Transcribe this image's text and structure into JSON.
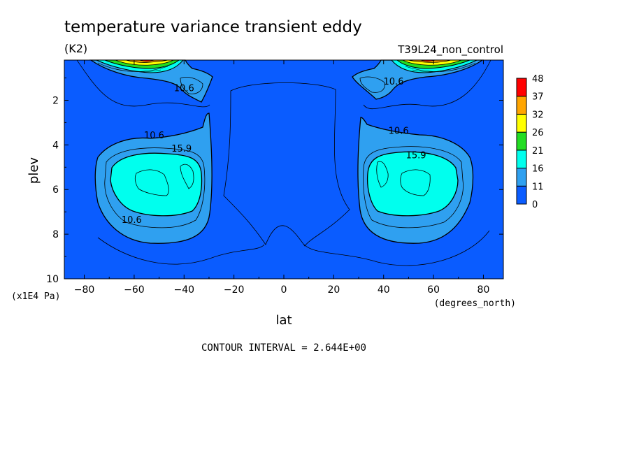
{
  "chart_data": {
    "type": "heatmap",
    "title": "temperature variance transient eddy",
    "units": "(K2)",
    "run_label": "T39L24_non_control",
    "xlabel": "lat",
    "x_units": "(degrees_north)",
    "ylabel": "plev",
    "y_units": "(x1E4 Pa)",
    "xlim": [
      -88,
      88
    ],
    "ylim": [
      10,
      0.2
    ],
    "y_inverted": true,
    "x_ticks": [
      -80,
      -60,
      -40,
      -20,
      0,
      20,
      40,
      60,
      80
    ],
    "y_ticks": [
      2,
      4,
      6,
      8,
      10
    ],
    "x_tick_labels": [
      "−80",
      "−60",
      "−40",
      "−20",
      "0",
      "20",
      "40",
      "60",
      "80"
    ],
    "y_tick_labels": [
      "2",
      "4",
      "6",
      "8",
      "10"
    ],
    "colorbar": {
      "levels": [
        0,
        11,
        16,
        21,
        26,
        32,
        37,
        48
      ],
      "level_labels": [
        "0",
        "11",
        "16",
        "21",
        "26",
        "32",
        "37",
        "48"
      ],
      "colors": [
        "#0a5cff",
        "#2fa0f0",
        "#00ffee",
        "#22dd22",
        "#ffff00",
        "#ffa500",
        "#ff0000"
      ]
    },
    "contour_labels": [
      {
        "text": "10.6",
        "lat": -40,
        "plev": 1.6
      },
      {
        "text": "10.6",
        "lat": 44,
        "plev": 1.3
      },
      {
        "text": "10.6",
        "lat": -52,
        "plev": 3.7
      },
      {
        "text": "15.9",
        "lat": -41,
        "plev": 4.3
      },
      {
        "text": "10.6",
        "lat": -61,
        "plev": 7.5
      },
      {
        "text": "10.6",
        "lat": 46,
        "plev": 3.5
      },
      {
        "text": "15.9",
        "lat": 53,
        "plev": 4.6
      }
    ],
    "footer": "CONTOUR INTERVAL = 2.644E+00"
  }
}
